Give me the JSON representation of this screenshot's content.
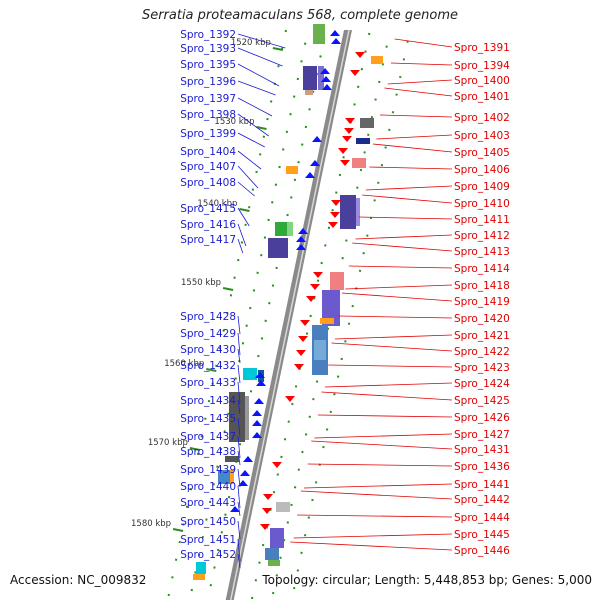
{
  "title": "Serratia proteamaculans 568, complete genome",
  "accession": "Accession: NC_009832",
  "topology": "Topology: circular; Length: 5,448,853 bp; Genes: 5,000",
  "colors": {
    "left_label": "#1c1ccf",
    "right_label": "#e00000",
    "backbone": "#8a8a8a",
    "tick": "#2e8b22"
  },
  "ticks": [
    "1520 kbp",
    "1530 kbp",
    "1540 kbp",
    "1550 kbp",
    "1560 kbp",
    "1570 kbp",
    "1580 kbp"
  ],
  "left_genes": [
    "Spro_1392",
    "Spro_1393",
    "Spro_1395",
    "Spro_1396",
    "Spro_1397",
    "Spro_1398",
    "Spro_1399",
    "Spro_1404",
    "Spro_1407",
    "Spro_1408",
    "Spro_1415",
    "Spro_1416",
    "Spro_1417",
    "Spro_1428",
    "Spro_1429",
    "Spro_1430",
    "Spro_1432",
    "Spro_1433",
    "Spro_1434",
    "Spro_1435",
    "Spro_1437",
    "Spro_1438",
    "Spro_1439",
    "Spro_1440",
    "Spro_1443",
    "Spro_1450",
    "Spro_1451",
    "Spro_1452"
  ],
  "right_genes": [
    "Spro_1391",
    "Spro_1394",
    "Spro_1400",
    "Spro_1401",
    "Spro_1402",
    "Spro_1403",
    "Spro_1405",
    "Spro_1406",
    "Spro_1409",
    "Spro_1410",
    "Spro_1411",
    "Spro_1412",
    "Spro_1413",
    "Spro_1414",
    "Spro_1418",
    "Spro_1419",
    "Spro_1420",
    "Spro_1421",
    "Spro_1422",
    "Spro_1423",
    "Spro_1424",
    "Spro_1425",
    "Spro_1426",
    "Spro_1427",
    "Spro_1431",
    "Spro_1436",
    "Spro_1441",
    "Spro_1442",
    "Spro_1444",
    "Spro_1445",
    "Spro_1446"
  ]
}
